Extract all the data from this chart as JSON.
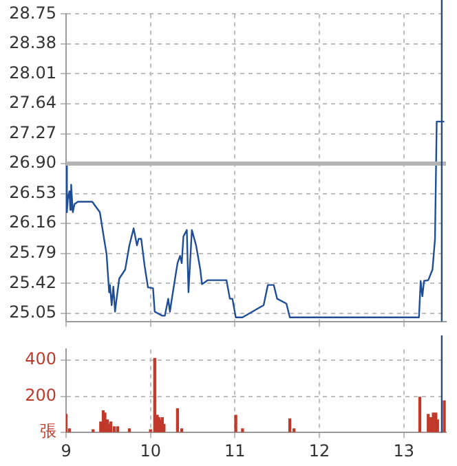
{
  "chart_data": [
    {
      "type": "line",
      "xlim": [
        9,
        13.5
      ],
      "xticks": [
        9,
        10,
        11,
        12,
        13
      ],
      "tick_labels": "y",
      "ylim": [
        24.95,
        28.75
      ],
      "yticks": [
        25.05,
        25.42,
        25.79,
        26.16,
        26.53,
        {
          "value": 26.9,
          "label": "26.90"
        },
        27.27,
        27.64,
        28.01,
        28.38,
        28.75
      ],
      "grid": true,
      "legend": false,
      "series": [
        {
          "color": "#1f4e96",
          "x": [
            9.0,
            9.01,
            9.02,
            9.04,
            9.05,
            9.06,
            9.08,
            9.1,
            9.14,
            9.31,
            9.4,
            9.45,
            9.48,
            9.51,
            9.52,
            9.54,
            9.56,
            9.58,
            9.6,
            9.63,
            9.7,
            9.75,
            9.8,
            9.84,
            9.86,
            9.89,
            9.93,
            9.97,
            10.03,
            10.05,
            10.14,
            10.17,
            10.21,
            10.23,
            10.25,
            10.32,
            10.35,
            10.37,
            10.39,
            10.43,
            10.45,
            10.49,
            10.54,
            10.59,
            10.61,
            10.68,
            10.9,
            10.94,
            10.97,
            11.01,
            11.09,
            11.34,
            11.39,
            11.46,
            11.5,
            11.61,
            11.65,
            13.18,
            13.2,
            13.22,
            13.24,
            13.29,
            13.34,
            13.37,
            13.39,
            13.48
          ],
          "values": [
            26.9,
            26.3,
            26.46,
            26.56,
            26.33,
            26.64,
            26.3,
            26.4,
            26.43,
            26.43,
            26.3,
            25.97,
            25.78,
            25.31,
            25.4,
            25.15,
            25.38,
            25.07,
            25.24,
            25.48,
            25.59,
            25.89,
            26.1,
            25.89,
            25.97,
            25.97,
            25.64,
            25.37,
            25.36,
            25.07,
            25.02,
            25.02,
            25.23,
            25.07,
            25.21,
            25.67,
            25.76,
            25.67,
            26.0,
            26.08,
            25.31,
            26.08,
            25.89,
            25.59,
            25.41,
            25.46,
            25.46,
            25.23,
            25.23,
            25.0,
            25.0,
            25.15,
            25.4,
            25.4,
            25.23,
            25.17,
            25.0,
            25.0,
            25.45,
            25.26,
            25.45,
            25.46,
            25.59,
            25.97,
            27.42,
            27.42
          ]
        }
      ],
      "ref_lines": [
        {
          "axis": "y",
          "value": 26.9,
          "color": "#b4b4b4"
        },
        {
          "axis": "x",
          "value": 13.45,
          "color": "#2c4a7a"
        }
      ]
    },
    {
      "type": "bar",
      "xlim": [
        9,
        13.5
      ],
      "xticks": [
        9,
        10,
        11,
        12,
        13
      ],
      "ylim": [
        0,
        460
      ],
      "yticks": [
        {
          "value": 0,
          "label": "張"
        },
        200,
        400
      ],
      "grid": true,
      "legend": false,
      "series": [
        {
          "color": "#c0392b",
          "x": [
            9.0,
            9.04,
            9.32,
            9.41,
            9.44,
            9.46,
            9.49,
            9.51,
            9.53,
            9.57,
            9.61,
            9.75,
            10.0,
            10.05,
            10.08,
            10.1,
            10.12,
            10.14,
            10.16,
            10.32,
            10.37,
            11.01,
            11.09,
            11.65,
            11.7,
            13.19,
            13.29,
            13.32,
            13.35,
            13.38,
            13.4,
            13.48
          ],
          "values": [
            100,
            20,
            15,
            58,
            120,
            108,
            70,
            45,
            58,
            32,
            32,
            20,
            15,
            410,
            95,
            82,
            70,
            82,
            45,
            132,
            20,
            95,
            20,
            75,
            20,
            195,
            100,
            82,
            108,
            108,
            70,
            175
          ]
        }
      ],
      "ref_lines": [
        {
          "axis": "x",
          "value": 13.45,
          "color": "#2c4a7a"
        }
      ]
    }
  ]
}
